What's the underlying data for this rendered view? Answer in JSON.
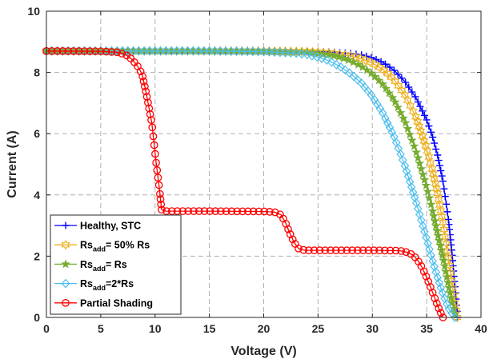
{
  "chart_data": {
    "type": "line",
    "xlabel": "Voltage (V)",
    "ylabel": "Current (A)",
    "xlim": [
      0,
      40
    ],
    "ylim": [
      0,
      10
    ],
    "xticks": [
      "0",
      "5",
      "10",
      "15",
      "20",
      "25",
      "30",
      "35",
      "40"
    ],
    "yticks": [
      "0",
      "2",
      "4",
      "6",
      "8",
      "10"
    ],
    "grid": true,
    "legend_position": "bottom-left",
    "series": [
      {
        "name": "Healthy, STC",
        "legend": {
          "base": "Healthy, STC",
          "sub": "",
          "rest": ""
        },
        "color": "#0000ff",
        "marker": "plus",
        "points": [
          [
            0,
            8.7
          ],
          [
            5,
            8.7
          ],
          [
            10,
            8.7
          ],
          [
            15,
            8.7
          ],
          [
            20,
            8.7
          ],
          [
            24,
            8.69
          ],
          [
            26,
            8.67
          ],
          [
            28,
            8.62
          ],
          [
            29,
            8.57
          ],
          [
            30,
            8.48
          ],
          [
            31,
            8.32
          ],
          [
            32,
            8.07
          ],
          [
            33,
            7.7
          ],
          [
            34,
            7.18
          ],
          [
            35,
            6.45
          ],
          [
            35.5,
            5.95
          ],
          [
            36,
            5.3
          ],
          [
            36.5,
            4.45
          ],
          [
            37,
            3.2
          ],
          [
            37.3,
            2.2
          ],
          [
            37.6,
            1.0
          ],
          [
            37.85,
            0.0
          ]
        ]
      },
      {
        "name": "Rsadd= 50% Rs",
        "legend": {
          "base": "Rs",
          "sub": "add",
          "rest": "= 50% Rs"
        },
        "color": "#edb120",
        "marker": "hexagram",
        "points": [
          [
            0,
            8.7
          ],
          [
            5,
            8.7
          ],
          [
            10,
            8.7
          ],
          [
            15,
            8.7
          ],
          [
            20,
            8.7
          ],
          [
            24,
            8.68
          ],
          [
            26,
            8.64
          ],
          [
            28,
            8.54
          ],
          [
            29,
            8.45
          ],
          [
            30,
            8.31
          ],
          [
            31,
            8.09
          ],
          [
            32,
            7.76
          ],
          [
            33,
            7.27
          ],
          [
            34,
            6.55
          ],
          [
            35,
            5.5
          ],
          [
            35.5,
            4.85
          ],
          [
            36,
            4.05
          ],
          [
            36.5,
            3.1
          ],
          [
            37,
            1.95
          ],
          [
            37.4,
            0.95
          ],
          [
            37.8,
            0.0
          ]
        ]
      },
      {
        "name": "Rsadd= Rs",
        "legend": {
          "base": "Rs",
          "sub": "add",
          "rest": "= Rs"
        },
        "color": "#77ac30",
        "marker": "star",
        "points": [
          [
            0,
            8.7
          ],
          [
            5,
            8.7
          ],
          [
            10,
            8.7
          ],
          [
            15,
            8.7
          ],
          [
            20,
            8.69
          ],
          [
            24,
            8.66
          ],
          [
            26,
            8.58
          ],
          [
            27,
            8.5
          ],
          [
            28,
            8.38
          ],
          [
            29,
            8.2
          ],
          [
            30,
            7.95
          ],
          [
            31,
            7.6
          ],
          [
            32,
            7.1
          ],
          [
            33,
            6.4
          ],
          [
            34,
            5.45
          ],
          [
            35,
            4.25
          ],
          [
            35.5,
            3.55
          ],
          [
            36,
            2.75
          ],
          [
            36.5,
            1.95
          ],
          [
            37,
            1.05
          ],
          [
            37.4,
            0.4
          ],
          [
            37.7,
            0.0
          ]
        ]
      },
      {
        "name": "Rsadd=2*Rs",
        "legend": {
          "base": "Rs",
          "sub": "add",
          "rest": "=2*Rs"
        },
        "color": "#4dbeee",
        "marker": "diamond",
        "points": [
          [
            0,
            8.7
          ],
          [
            5,
            8.7
          ],
          [
            10,
            8.7
          ],
          [
            15,
            8.7
          ],
          [
            20,
            8.68
          ],
          [
            23,
            8.63
          ],
          [
            24,
            8.58
          ],
          [
            25,
            8.5
          ],
          [
            26,
            8.38
          ],
          [
            27,
            8.2
          ],
          [
            28,
            7.96
          ],
          [
            29,
            7.65
          ],
          [
            30,
            7.22
          ],
          [
            31,
            6.65
          ],
          [
            32,
            5.9
          ],
          [
            33,
            4.95
          ],
          [
            34,
            3.8
          ],
          [
            35,
            2.55
          ],
          [
            35.5,
            1.9
          ],
          [
            36,
            1.3
          ],
          [
            36.5,
            0.75
          ],
          [
            37,
            0.3
          ],
          [
            37.6,
            0.0
          ]
        ]
      },
      {
        "name": "Partial Shading",
        "legend": {
          "base": "Partial Shading",
          "sub": "",
          "rest": ""
        },
        "color": "#ff0000",
        "marker": "circle",
        "points": [
          [
            0,
            8.7
          ],
          [
            5,
            8.69
          ],
          [
            6.5,
            8.66
          ],
          [
            7.3,
            8.58
          ],
          [
            7.9,
            8.42
          ],
          [
            8.4,
            8.2
          ],
          [
            8.8,
            7.95
          ],
          [
            9.2,
            7.3
          ],
          [
            9.7,
            6.35
          ],
          [
            10.1,
            5.05
          ],
          [
            10.4,
            4.2
          ],
          [
            10.6,
            3.52
          ],
          [
            11,
            3.47
          ],
          [
            15,
            3.47
          ],
          [
            20,
            3.46
          ],
          [
            21,
            3.44
          ],
          [
            21.6,
            3.35
          ],
          [
            22,
            3.1
          ],
          [
            22.4,
            2.75
          ],
          [
            22.8,
            2.45
          ],
          [
            23.2,
            2.25
          ],
          [
            23.8,
            2.19
          ],
          [
            25,
            2.19
          ],
          [
            30,
            2.19
          ],
          [
            32.5,
            2.18
          ],
          [
            33.3,
            2.12
          ],
          [
            33.8,
            2.02
          ],
          [
            34.2,
            1.85
          ],
          [
            34.6,
            1.62
          ],
          [
            35,
            1.3
          ],
          [
            35.4,
            0.95
          ],
          [
            35.8,
            0.58
          ],
          [
            36.2,
            0.22
          ],
          [
            36.5,
            0.0
          ]
        ]
      }
    ]
  }
}
